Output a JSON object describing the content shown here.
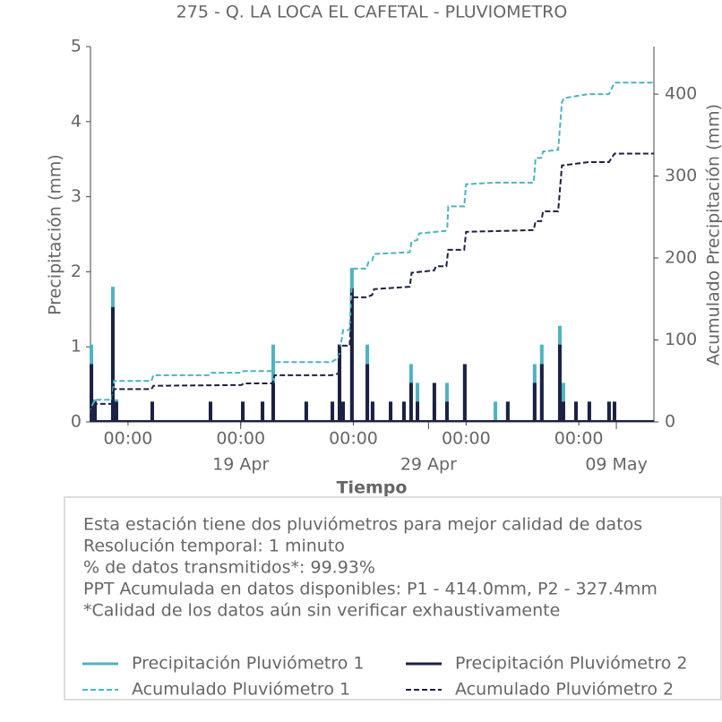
{
  "chart_data": {
    "type": "line",
    "title": "275 - Q. LA LOCA EL CAFETAL - PLUVIOMETRO",
    "xlabel": "Tiempo",
    "ylabel": "Precipitación (mm)",
    "y2label": "Acumulado Precipitación (mm)",
    "xlim": [
      11,
      41
    ],
    "xticks": [
      {
        "value": 13,
        "label": "00:00"
      },
      {
        "value": 19,
        "label": "00:00"
      },
      {
        "value": 25,
        "label": "00:00"
      },
      {
        "value": 31,
        "label": "00:00"
      },
      {
        "value": 37,
        "label": "00:00"
      }
    ],
    "xmajorticks": [
      {
        "value": 19,
        "label": "19 Apr"
      },
      {
        "value": 29,
        "label": "29 Apr"
      },
      {
        "value": 39,
        "label": "09 May"
      }
    ],
    "ylim": [
      0,
      5
    ],
    "yticks": [
      0,
      1,
      2,
      3,
      4,
      5
    ],
    "y2lim": [
      0,
      458
    ],
    "y2ticks": [
      0,
      100,
      200,
      300,
      400
    ],
    "series": [
      {
        "name": "Precipitación Pluviómetro 1",
        "color": "#4fb3bf",
        "style": "spike",
        "x": [
          11.05,
          11.24,
          12.19,
          12.38,
          14.29,
          17.39,
          19.11,
          20.16,
          20.73,
          22.49,
          23.88,
          24.26,
          24.45,
          24.92,
          25.74,
          26.02,
          26.98,
          27.69,
          28.07,
          28.41,
          29.31,
          29.98,
          30.93,
          32.56,
          33.22,
          34.65,
          35.03,
          35.99,
          36.18,
          36.85,
          37.56,
          38.61,
          38.9
        ],
        "values": [
          1.03,
          0.3,
          1.8,
          0.3,
          0.27,
          0.27,
          0.27,
          0.27,
          1.03,
          0.27,
          0.27,
          1.03,
          0.27,
          2.05,
          1.03,
          0.27,
          0.27,
          0.27,
          0.77,
          0.52,
          0.27,
          0.52,
          0.77,
          0.27,
          0.27,
          0.77,
          1.03,
          1.28,
          0.52,
          0.27,
          0.27,
          0.27,
          0.27
        ]
      },
      {
        "name": "Precipitación Pluviómetro 2",
        "color": "#1c2143",
        "style": "spike",
        "x": [
          11.05,
          11.24,
          12.19,
          12.38,
          14.29,
          17.39,
          19.11,
          20.16,
          20.73,
          22.49,
          23.88,
          24.26,
          24.45,
          24.92,
          25.74,
          26.02,
          26.98,
          27.69,
          28.07,
          28.41,
          29.31,
          29.98,
          30.93,
          33.22,
          34.65,
          35.03,
          35.99,
          36.18,
          36.85,
          37.56,
          38.61,
          38.9
        ],
        "values": [
          0.77,
          0.27,
          1.53,
          0.27,
          0.27,
          0.27,
          0.27,
          0.27,
          0.52,
          0.27,
          0.27,
          1.03,
          0.27,
          1.78,
          0.77,
          0.27,
          0.27,
          0.27,
          0.52,
          0.27,
          0.52,
          0.27,
          0.77,
          0.27,
          0.52,
          0.77,
          1.03,
          0.27,
          0.27,
          0.27,
          0.27,
          0.27
        ]
      },
      {
        "name": "Acumulado Pluviómetro 1",
        "color": "#4fb3bf",
        "style": "dashed",
        "axis": "y2",
        "x": [
          11,
          11.05,
          11.24,
          12.15,
          12.25,
          14.25,
          14.35,
          17.35,
          17.45,
          19.05,
          19.15,
          20.7,
          20.8,
          23.85,
          23.95,
          24.2,
          24.3,
          24.45,
          24.8,
          24.95,
          25.7,
          25.8,
          26,
          26.1,
          28,
          28.1,
          28.4,
          28.5,
          29.9,
          30,
          30.05,
          30.9,
          31,
          32.55,
          34.6,
          34.7,
          35,
          35.1,
          35.9,
          36.1,
          36.2,
          37.5,
          38.6,
          38.9,
          41
        ],
        "values": [
          0,
          18,
          27,
          27,
          50,
          50,
          57,
          57,
          60,
          60,
          62,
          62,
          73,
          73,
          75,
          77,
          90,
          112,
          112,
          187,
          187,
          195,
          197,
          205,
          207,
          220,
          222,
          230,
          233,
          238,
          263,
          263,
          290,
          292,
          292,
          322,
          322,
          330,
          332,
          390,
          395,
          400,
          400,
          414,
          414
        ]
      },
      {
        "name": "Acumulado Pluviómetro 2",
        "color": "#1c2143",
        "style": "dashed",
        "axis": "y2",
        "x": [
          11,
          11.05,
          11.24,
          12.15,
          12.25,
          14.25,
          14.35,
          19.05,
          19.15,
          20.7,
          20.8,
          23.85,
          24.2,
          24.3,
          24.8,
          24.95,
          25.7,
          26,
          26.1,
          28,
          28.1,
          29.3,
          29.4,
          29.95,
          30.05,
          30.9,
          31,
          34.6,
          34.7,
          35,
          35.1,
          35.9,
          36.1,
          36.85,
          37.5,
          38.6,
          38.9,
          41
        ],
        "values": [
          0,
          14,
          22,
          22,
          40,
          40,
          44,
          45,
          47,
          47,
          57,
          57,
          59,
          93,
          93,
          152,
          152,
          155,
          162,
          165,
          182,
          185,
          190,
          190,
          210,
          210,
          232,
          234,
          245,
          245,
          257,
          257,
          313,
          315,
          317,
          317,
          327.4,
          327.4
        ]
      }
    ],
    "notes": [
      "Esta estación tiene dos pluviómetros para mejor calidad de datos",
      "Resolución temporal: 1 minuto",
      "% de datos transmitidos*: 99.93%",
      "PPT Acumulada en datos disponibles: P1 - 414.0mm, P2 - 327.4mm",
      "*Calidad de los datos aún sin verificar exhaustivamente"
    ]
  }
}
